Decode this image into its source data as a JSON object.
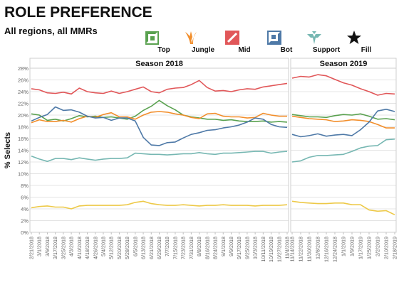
{
  "header": {
    "title": "ROLE PREFERENCE",
    "subtitle": "All regions, all MMRs"
  },
  "legend": [
    {
      "label": "Top",
      "color": "#59a14f",
      "icon": "top-role-icon"
    },
    {
      "label": "Jungle",
      "color": "#f28e2b",
      "icon": "jungle-role-icon"
    },
    {
      "label": "Mid",
      "color": "#e15759",
      "icon": "mid-role-icon"
    },
    {
      "label": "Bot",
      "color": "#4e79a7",
      "icon": "bot-role-icon"
    },
    {
      "label": "Support",
      "color": "#76b7b2",
      "icon": "support-role-icon"
    },
    {
      "label": "Fill",
      "color": "#edc948",
      "icon": "fill-star-icon"
    }
  ],
  "chart_data": {
    "type": "line",
    "ylabel": "% Selects",
    "ylim": [
      0,
      28
    ],
    "yticks": [
      "0%",
      "2%",
      "4%",
      "6%",
      "8%",
      "10%",
      "12%",
      "14%",
      "16%",
      "18%",
      "20%",
      "22%",
      "24%",
      "26%",
      "28%"
    ],
    "grid": true,
    "legend_position": "top-right",
    "panels": [
      {
        "title": "Season 2018",
        "x": [
          "2/21/2018",
          "3/1/2018",
          "3/9/2018",
          "3/17/2018",
          "3/25/2018",
          "4/3/2018",
          "4/10/2018",
          "4/18/2018",
          "4/26/2018",
          "5/4/2018",
          "5/12/2018",
          "5/20/2018",
          "5/28/2018",
          "6/5/2018",
          "6/13/2018",
          "6/21/2018",
          "6/29/2018",
          "7/7/2018",
          "7/15/2018",
          "7/23/2018",
          "7/31/2018",
          "8/8/2018",
          "8/16/2018",
          "8/24/2018",
          "9/1/2018",
          "9/9/2018",
          "9/17/2018",
          "9/25/2018",
          "10/3/2018",
          "10/11/2018",
          "10/19/2018",
          "10/27/2018",
          "11/4/2018"
        ],
        "series": [
          {
            "name": "Mid",
            "color": "#e15759",
            "values": [
              24.5,
              24.3,
              23.8,
              23.7,
              23.9,
              23.6,
              24.6,
              24.0,
              23.8,
              23.7,
              24.1,
              23.7,
              24.0,
              24.4,
              24.8,
              24.0,
              23.8,
              24.4,
              24.6,
              24.7,
              25.2,
              25.9,
              24.7,
              24.1,
              24.2,
              24.0,
              24.3,
              24.5,
              24.4,
              24.8,
              25.0,
              25.2,
              25.4
            ]
          },
          {
            "name": "Top",
            "color": "#59a14f",
            "values": [
              20.2,
              20.0,
              19.1,
              19.3,
              19.0,
              19.4,
              19.9,
              19.7,
              19.8,
              19.6,
              19.7,
              19.5,
              19.3,
              19.8,
              20.8,
              21.5,
              22.5,
              21.6,
              20.9,
              20.0,
              19.7,
              19.5,
              19.3,
              19.3,
              19.1,
              19.2,
              19.0,
              18.9,
              18.9,
              19.0,
              18.8,
              18.9,
              18.8
            ]
          },
          {
            "name": "Jungle",
            "color": "#f28e2b",
            "values": [
              18.7,
              19.2,
              18.9,
              18.9,
              19.1,
              18.8,
              19.4,
              19.8,
              19.6,
              20.1,
              20.4,
              19.7,
              19.7,
              19.3,
              20.0,
              20.5,
              20.6,
              20.5,
              20.2,
              20.0,
              19.6,
              19.4,
              20.2,
              20.3,
              19.8,
              19.7,
              19.7,
              19.5,
              19.6,
              20.3,
              20.0,
              19.8,
              19.8
            ]
          },
          {
            "name": "Bot",
            "color": "#4e79a7",
            "values": [
              19.0,
              19.6,
              20.1,
              21.4,
              20.8,
              20.9,
              20.5,
              19.8,
              19.5,
              19.6,
              19.1,
              19.5,
              19.5,
              19.0,
              16.2,
              14.9,
              14.8,
              15.3,
              15.4,
              16.1,
              16.7,
              17.0,
              17.4,
              17.5,
              17.8,
              18.0,
              18.3,
              18.8,
              19.5,
              19.3,
              18.4,
              18.0,
              17.9
            ]
          },
          {
            "name": "Support",
            "color": "#76b7b2",
            "values": [
              13.0,
              12.5,
              12.1,
              12.6,
              12.6,
              12.4,
              12.7,
              12.5,
              12.3,
              12.5,
              12.6,
              12.6,
              12.7,
              13.5,
              13.4,
              13.3,
              13.3,
              13.2,
              13.3,
              13.4,
              13.4,
              13.6,
              13.4,
              13.3,
              13.5,
              13.5,
              13.6,
              13.7,
              13.8,
              13.8,
              13.5,
              13.7,
              13.8
            ]
          },
          {
            "name": "Fill",
            "color": "#edc948",
            "values": [
              4.2,
              4.4,
              4.5,
              4.3,
              4.3,
              4.0,
              4.5,
              4.6,
              4.6,
              4.6,
              4.6,
              4.6,
              4.7,
              5.1,
              5.3,
              4.9,
              4.7,
              4.6,
              4.6,
              4.7,
              4.6,
              4.5,
              4.6,
              4.6,
              4.7,
              4.6,
              4.6,
              4.6,
              4.5,
              4.6,
              4.6,
              4.6,
              4.7
            ]
          }
        ]
      },
      {
        "title": "Season 2019",
        "x": [
          "11/14/2018",
          "11/22/2018",
          "11/30/2018",
          "12/8/2018",
          "12/16/2018",
          "12/24/2018",
          "1/1/2019",
          "1/9/2019",
          "1/17/2019",
          "1/25/2019",
          "2/2/2019",
          "2/10/2019",
          "2/18/2019"
        ],
        "series": [
          {
            "name": "Mid",
            "color": "#e15759",
            "values": [
              26.3,
              26.6,
              26.5,
              26.9,
              26.7,
              26.1,
              25.5,
              25.1,
              24.5,
              24.0,
              23.4,
              23.7,
              23.6
            ]
          },
          {
            "name": "Top",
            "color": "#59a14f",
            "values": [
              20.1,
              19.9,
              19.7,
              19.7,
              19.6,
              19.9,
              20.1,
              20.0,
              20.2,
              19.8,
              19.3,
              19.4,
              19.2
            ]
          },
          {
            "name": "Jungle",
            "color": "#f28e2b",
            "values": [
              19.8,
              19.6,
              19.4,
              19.3,
              19.2,
              18.9,
              19.0,
              19.2,
              19.1,
              18.9,
              18.4,
              17.8,
              17.8
            ]
          },
          {
            "name": "Bot",
            "color": "#4e79a7",
            "values": [
              16.7,
              16.3,
              16.5,
              16.8,
              16.4,
              16.6,
              16.7,
              16.5,
              17.5,
              18.8,
              20.7,
              21.0,
              20.6
            ]
          },
          {
            "name": "Support",
            "color": "#76b7b2",
            "values": [
              12.0,
              12.2,
              12.8,
              13.1,
              13.1,
              13.2,
              13.3,
              13.8,
              14.4,
              14.7,
              14.8,
              15.8,
              15.9
            ]
          },
          {
            "name": "Fill",
            "color": "#edc948",
            "values": [
              5.3,
              5.1,
              5.0,
              4.9,
              4.9,
              5.0,
              5.0,
              4.7,
              4.7,
              3.8,
              3.6,
              3.7,
              3.0
            ]
          }
        ]
      }
    ]
  }
}
